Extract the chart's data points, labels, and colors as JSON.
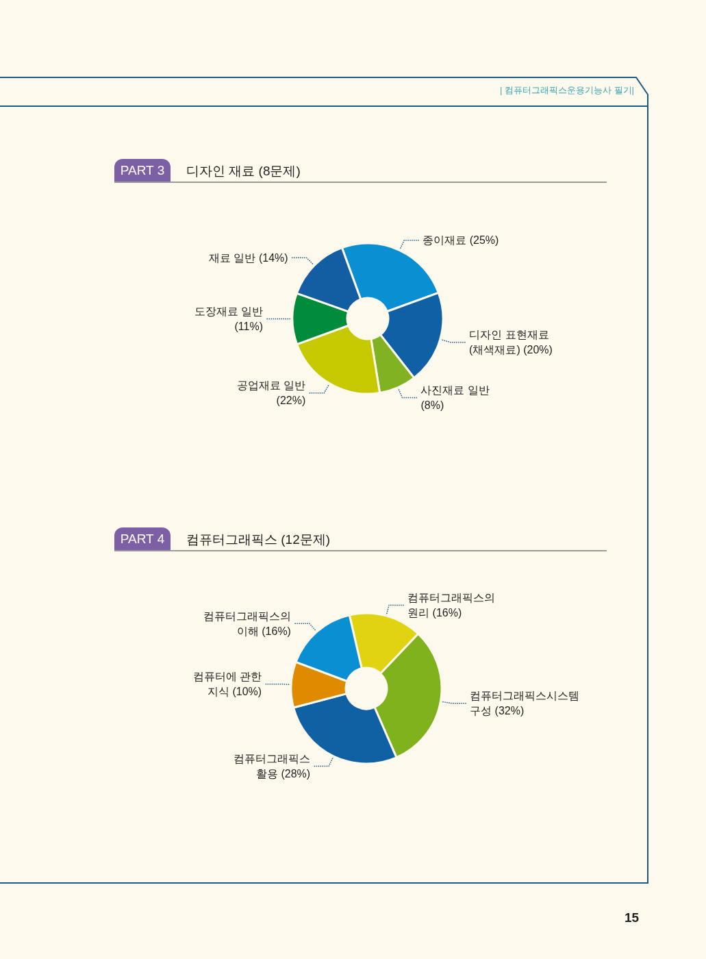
{
  "chart_data": [
    {
      "type": "donut",
      "subtitle": "PART 3",
      "title": "디자인 재료 (8문제)",
      "categories": [
        "종이재료",
        "디자인 표현재료 (채색재료)",
        "사진재료 일반",
        "공업재료 일반",
        "도장재료 일반",
        "재료 일반"
      ],
      "values": [
        25,
        20,
        8,
        22,
        11,
        14
      ],
      "value_labels": [
        "(25%)",
        "(20%)",
        "(8%)",
        "(22%)",
        "(11%)",
        "(14%)"
      ],
      "colors": [
        "#0a90d2",
        "#1060a6",
        "#80b222",
        "#c6c800",
        "#008c3c",
        "#135ea2"
      ],
      "annotations": [
        "| 컴퓨터그래픽스운용기능사 필기|"
      ]
    },
    {
      "type": "donut",
      "subtitle": "PART 4",
      "title": "컴퓨터그래픽스 (12문제)",
      "categories": [
        "컴퓨터그래픽스의 원리",
        "컴퓨터그래픽스시스템 구성",
        "컴퓨터그래픽스 활용",
        "컴퓨터에 관한 지식",
        "컴퓨터그래픽스의 이해"
      ],
      "values": [
        16,
        32,
        28,
        10,
        16
      ],
      "value_labels": [
        "(16%)",
        "(32%)",
        "(28%)",
        "(10%)",
        "(16%)"
      ],
      "colors": [
        "#e0d412",
        "#80b21e",
        "#1060a4",
        "#e08a00",
        "#0a90d2"
      ],
      "annotations": [
        "15"
      ]
    }
  ]
}
